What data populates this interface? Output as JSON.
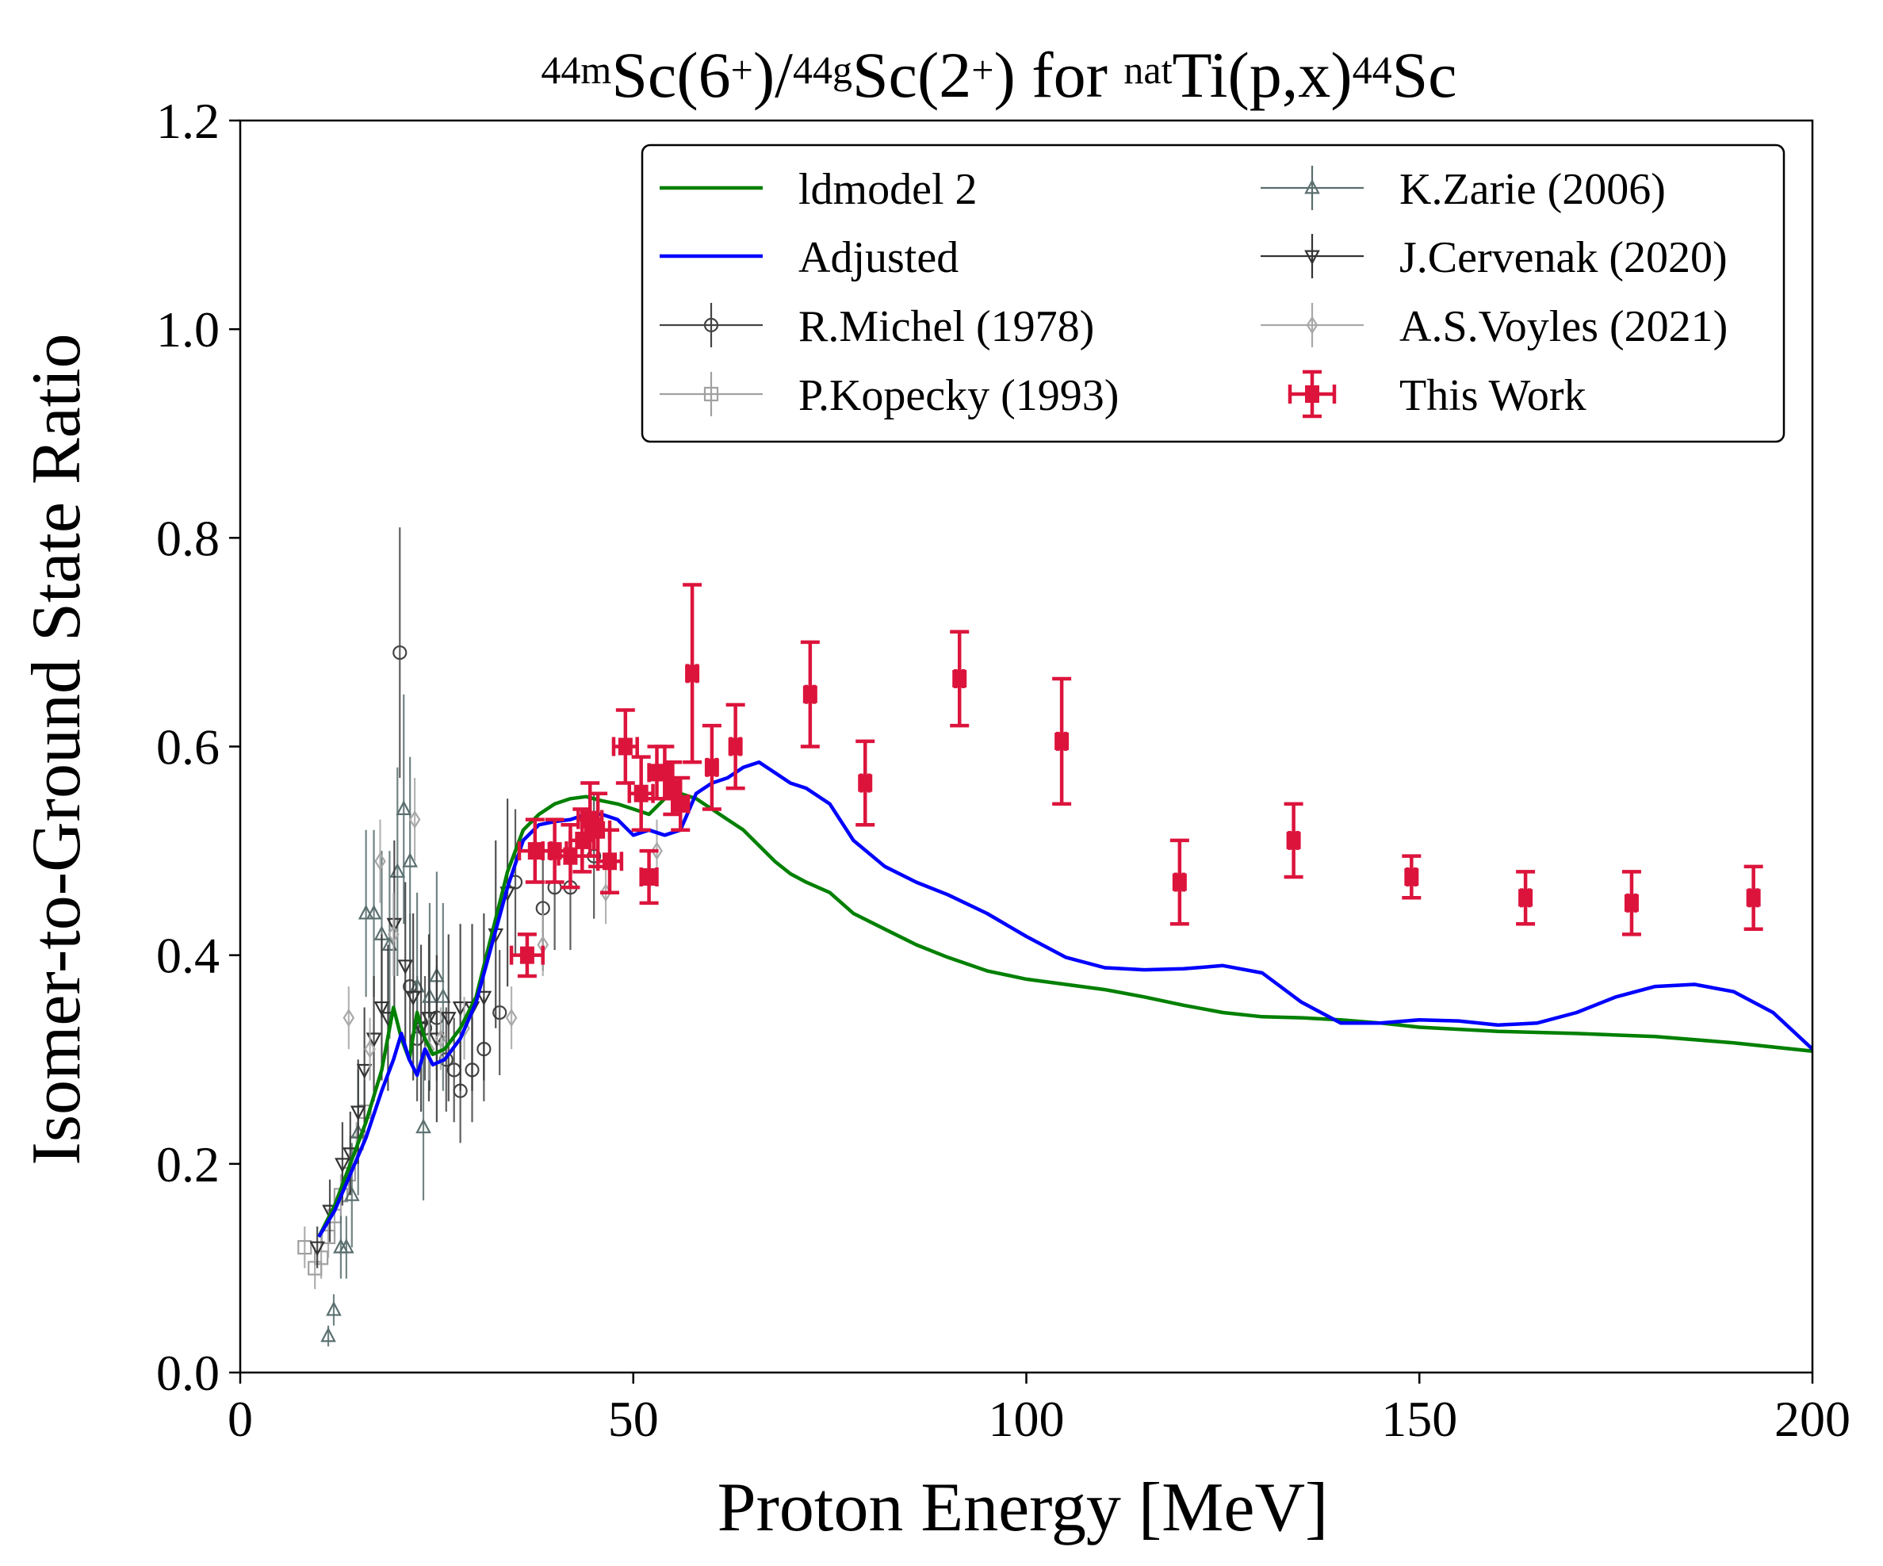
{
  "chart_data": {
    "type": "scatter",
    "title": {
      "p1": "44m",
      "p2": "Sc(6",
      "p3": "+",
      "p4": ")/",
      "p5": "44g",
      "p6": "Sc(2",
      "p7": "+",
      "p8": ") for ",
      "p9": "nat",
      "p10": "Ti(p,x)",
      "p11": "44",
      "p12": "Sc"
    },
    "xlabel": "Proton Energy [MeV]",
    "ylabel": "Isomer-to-Ground State Ratio",
    "xlim": [
      0,
      200
    ],
    "ylim": [
      0,
      1.2
    ],
    "xticks": [
      0,
      50,
      100,
      150,
      200
    ],
    "xtick_labels": [
      "0",
      "50",
      "100",
      "150",
      "200"
    ],
    "yticks": [
      0,
      0.2,
      0.4,
      0.6,
      0.8,
      1.0,
      1.2
    ],
    "ytick_labels": [
      "0.0",
      "0.2",
      "0.4",
      "0.6",
      "0.8",
      "1.0",
      "1.2"
    ],
    "grid": false,
    "legend_position": "top-right",
    "legend": [
      {
        "label": "ldmodel 2",
        "kind": "line",
        "color": "#008000"
      },
      {
        "label": "Adjusted",
        "kind": "line",
        "color": "#0000ff"
      },
      {
        "label": "R.Michel (1978)",
        "kind": "marker",
        "marker": "circle",
        "color": "#444444"
      },
      {
        "label": "P.Kopecky (1993)",
        "kind": "marker",
        "marker": "square",
        "color": "#a0a0a0"
      },
      {
        "label": "K.Zarie (2006)",
        "kind": "marker",
        "marker": "triangle-up",
        "color": "#5a6e6e"
      },
      {
        "label": "J.Cervenak (2020)",
        "kind": "marker",
        "marker": "triangle-down",
        "color": "#333333"
      },
      {
        "label": "A.S.Voyles (2021)",
        "kind": "marker",
        "marker": "diamond",
        "color": "#a8a8a8"
      },
      {
        "label": "This Work",
        "kind": "errorbar",
        "marker": "square",
        "color": "#dc143c"
      }
    ],
    "series": [
      {
        "name": "ldmodel 2",
        "type": "line",
        "color": "#008000",
        "x": [
          10,
          12,
          14,
          16,
          18,
          19.5,
          20.5,
          21.5,
          22.5,
          23.5,
          24.5,
          26,
          28,
          30,
          32,
          34,
          36,
          38,
          40,
          42,
          44,
          46,
          48,
          50,
          52,
          54,
          56,
          58,
          60,
          62,
          64,
          66,
          68,
          70,
          72,
          75,
          78,
          82,
          86,
          90,
          95,
          100,
          105,
          110,
          115,
          120,
          125,
          130,
          135,
          140,
          145,
          150,
          160,
          170,
          180,
          190,
          200
        ],
        "y": [
          0.13,
          0.16,
          0.2,
          0.24,
          0.29,
          0.35,
          0.32,
          0.3,
          0.345,
          0.32,
          0.305,
          0.31,
          0.33,
          0.36,
          0.42,
          0.48,
          0.52,
          0.535,
          0.545,
          0.55,
          0.552,
          0.548,
          0.545,
          0.54,
          0.535,
          0.55,
          0.555,
          0.55,
          0.54,
          0.53,
          0.52,
          0.505,
          0.49,
          0.478,
          0.47,
          0.46,
          0.44,
          0.425,
          0.41,
          0.398,
          0.385,
          0.377,
          0.372,
          0.367,
          0.36,
          0.352,
          0.345,
          0.341,
          0.34,
          0.338,
          0.335,
          0.331,
          0.327,
          0.325,
          0.322,
          0.316,
          0.308
        ]
      },
      {
        "name": "Adjusted",
        "type": "line",
        "color": "#0000ff",
        "x": [
          10,
          12,
          14,
          16,
          18,
          19.5,
          20.5,
          21.5,
          22.5,
          23.5,
          24.5,
          26,
          28,
          30,
          32,
          34,
          36,
          38,
          40,
          42,
          44,
          46,
          48,
          50,
          52,
          54,
          56,
          58,
          60,
          62,
          64,
          66,
          68,
          70,
          72,
          75,
          78,
          82,
          86,
          90,
          95,
          100,
          105,
          110,
          115,
          120,
          125,
          130,
          135,
          140,
          145,
          150,
          155,
          160,
          165,
          170,
          175,
          180,
          185,
          190,
          195,
          200
        ],
        "y": [
          0.13,
          0.155,
          0.19,
          0.225,
          0.27,
          0.3,
          0.325,
          0.3,
          0.285,
          0.31,
          0.295,
          0.3,
          0.32,
          0.355,
          0.41,
          0.465,
          0.51,
          0.525,
          0.528,
          0.53,
          0.535,
          0.535,
          0.53,
          0.515,
          0.52,
          0.515,
          0.52,
          0.555,
          0.565,
          0.57,
          0.58,
          0.585,
          0.575,
          0.565,
          0.56,
          0.545,
          0.51,
          0.485,
          0.47,
          0.458,
          0.44,
          0.418,
          0.398,
          0.388,
          0.386,
          0.387,
          0.39,
          0.383,
          0.355,
          0.335,
          0.335,
          0.338,
          0.337,
          0.333,
          0.335,
          0.345,
          0.36,
          0.37,
          0.372,
          0.365,
          0.345,
          0.31
        ]
      },
      {
        "name": "R.Michel (1978)",
        "type": "scatter",
        "marker": "circle",
        "color": "#444444",
        "x": [
          20.3,
          21.6,
          22.5,
          23.5,
          25.0,
          26.2,
          27.2,
          28.0,
          29.5,
          31.0,
          33.0,
          35.0,
          38.5,
          40.0,
          42.0,
          45.0
        ],
        "y": [
          0.69,
          0.37,
          0.32,
          0.33,
          0.34,
          0.3,
          0.29,
          0.27,
          0.29,
          0.31,
          0.345,
          0.47,
          0.445,
          0.465,
          0.465,
          0.495
        ],
        "err": [
          0.12,
          0.07,
          0.06,
          0.05,
          0.05,
          0.05,
          0.05,
          0.05,
          0.05,
          0.05,
          0.06,
          0.07,
          0.06,
          0.06,
          0.06,
          0.06
        ]
      },
      {
        "name": "P.Kopecky (1993)",
        "type": "scatter",
        "marker": "square",
        "color": "#a0a0a0",
        "x": [
          8.2,
          9.5,
          10.3,
          11.2,
          12.0,
          12.8,
          13.8,
          14.8,
          15.8
        ],
        "y": [
          0.12,
          0.1,
          0.11,
          0.13,
          0.15,
          0.17,
          0.19,
          0.22,
          0.25
        ],
        "err": [
          0.02,
          0.02,
          0.02,
          0.02,
          0.02,
          0.02,
          0.02,
          0.02,
          0.03
        ]
      },
      {
        "name": "K.Zarie (2006)",
        "type": "scatter",
        "marker": "triangle-up",
        "color": "#5a6e6e",
        "x": [
          11.2,
          11.9,
          12.8,
          13.5,
          14.2,
          15.0,
          16.0,
          17.0,
          18.0,
          19.0,
          20.0,
          20.8,
          21.6,
          22.5,
          23.3,
          24.1,
          25.0,
          25.8
        ],
        "y": [
          0.035,
          0.06,
          0.12,
          0.12,
          0.17,
          0.23,
          0.44,
          0.44,
          0.42,
          0.41,
          0.48,
          0.54,
          0.49,
          0.37,
          0.235,
          0.36,
          0.38,
          0.36
        ],
        "err": [
          0.01,
          0.015,
          0.03,
          0.03,
          0.05,
          0.06,
          0.08,
          0.08,
          0.08,
          0.09,
          0.1,
          0.11,
          0.1,
          0.09,
          0.07,
          0.09,
          0.1,
          0.09
        ]
      },
      {
        "name": "J.Cervenak (2020)",
        "type": "scatter",
        "marker": "triangle-down",
        "color": "#333333",
        "x": [
          9.8,
          11.4,
          13.0,
          14.0,
          15.0,
          15.8,
          17.0,
          18.0,
          18.8,
          19.6,
          21.0,
          22.0,
          23.0,
          24.0,
          25.0,
          26.5,
          28.0,
          29.5,
          31.0,
          32.5,
          34.0
        ],
        "y": [
          0.12,
          0.155,
          0.2,
          0.21,
          0.25,
          0.29,
          0.32,
          0.35,
          0.34,
          0.43,
          0.39,
          0.36,
          0.33,
          0.34,
          0.32,
          0.34,
          0.35,
          0.35,
          0.36,
          0.42,
          0.46
        ],
        "err": [
          0.02,
          0.03,
          0.04,
          0.04,
          0.05,
          0.06,
          0.06,
          0.07,
          0.07,
          0.08,
          0.08,
          0.08,
          0.08,
          0.08,
          0.08,
          0.08,
          0.08,
          0.08,
          0.08,
          0.09,
          0.09
        ]
      },
      {
        "name": "A.S.Voyles (2021)",
        "type": "scatter",
        "marker": "diamond",
        "color": "#a8a8a8",
        "x": [
          13.8,
          16.5,
          17.8,
          19.5,
          22.2,
          24.0,
          25.5,
          28.5,
          34.5,
          38.5,
          46.5,
          53.0
        ],
        "y": [
          0.34,
          0.31,
          0.49,
          0.42,
          0.53,
          0.31,
          0.32,
          0.33,
          0.34,
          0.41,
          0.46,
          0.5
        ],
        "err": [
          0.03,
          0.03,
          0.04,
          0.04,
          0.04,
          0.03,
          0.03,
          0.03,
          0.03,
          0.03,
          0.03,
          0.03
        ]
      },
      {
        "name": "This Work",
        "type": "errorbar",
        "marker": "square",
        "color": "#dc143c",
        "x": [
          36.5,
          37.5,
          40.0,
          42.0,
          43.5,
          44.5,
          45.5,
          47.0,
          49.0,
          51.0,
          52.0,
          53.0,
          54.0,
          55.0,
          56.0,
          57.5,
          60.0,
          63.0,
          72.5,
          79.5,
          91.5,
          104.5,
          119.5,
          134.0,
          149.0,
          163.5,
          177.0,
          192.5
        ],
        "y": [
          0.4,
          0.5,
          0.5,
          0.495,
          0.51,
          0.53,
          0.52,
          0.49,
          0.6,
          0.555,
          0.475,
          0.575,
          0.575,
          0.56,
          0.545,
          0.67,
          0.58,
          0.6,
          0.65,
          0.565,
          0.665,
          0.605,
          0.47,
          0.51,
          0.475,
          0.455,
          0.45,
          0.455
        ],
        "yerr": [
          0.02,
          0.03,
          0.03,
          0.03,
          0.03,
          0.035,
          0.035,
          0.03,
          0.035,
          0.035,
          0.025,
          0.025,
          0.025,
          0.025,
          0.025,
          0.085,
          0.04,
          0.04,
          0.05,
          0.04,
          0.045,
          0.06,
          0.04,
          0.035,
          0.02,
          0.025,
          0.03,
          0.03
        ],
        "xerr": [
          2.0,
          2.0,
          1.5,
          1.5,
          1.5,
          1.5,
          1.5,
          1.5,
          1.5,
          1.5,
          1.0,
          1.0,
          1.0,
          1.0,
          1.0,
          0.6,
          0.6,
          0.6,
          0.5,
          0.5,
          0.5,
          0.5,
          0.5,
          0.5,
          0.5,
          0.5,
          0.5,
          0.5
        ]
      }
    ]
  }
}
